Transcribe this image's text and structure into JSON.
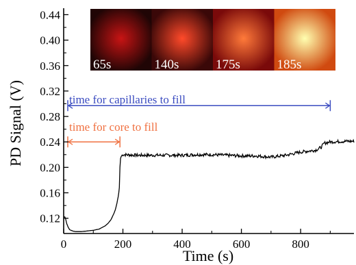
{
  "chart_data": {
    "type": "line",
    "xlabel": "Time (s)",
    "ylabel": "PD Signal (V)",
    "xlim": [
      0,
      980
    ],
    "ylim": [
      0.096,
      0.448
    ],
    "xticks": [
      0,
      200,
      400,
      600,
      800
    ],
    "xtick_labels": [
      "0",
      "200",
      "400",
      "600",
      "800"
    ],
    "yticks": [
      0.12,
      0.16,
      0.2,
      0.24,
      0.28,
      0.32,
      0.36,
      0.4,
      0.44
    ],
    "ytick_labels": [
      "0.12",
      "0.16",
      "0.20",
      "0.24",
      "0.28",
      "0.32",
      "0.36",
      "0.40",
      "0.44"
    ],
    "grid": false,
    "series": [
      {
        "color": "#000000",
        "x": [
          0,
          5,
          10,
          15,
          20,
          30,
          40,
          50,
          60,
          80,
          100,
          120,
          140,
          150,
          160,
          170,
          175,
          180,
          185,
          188,
          190,
          192,
          195,
          200,
          250,
          300,
          350,
          400,
          450,
          500,
          550,
          600,
          650,
          700,
          750,
          800,
          850,
          860,
          870,
          880,
          900,
          950,
          980
        ],
        "y": [
          0.122,
          0.122,
          0.112,
          0.106,
          0.102,
          0.1,
          0.099,
          0.099,
          0.099,
          0.1,
          0.101,
          0.103,
          0.108,
          0.112,
          0.118,
          0.128,
          0.134,
          0.144,
          0.156,
          0.168,
          0.2,
          0.214,
          0.218,
          0.22,
          0.219,
          0.219,
          0.219,
          0.219,
          0.22,
          0.22,
          0.219,
          0.218,
          0.218,
          0.216,
          0.219,
          0.224,
          0.227,
          0.229,
          0.232,
          0.238,
          0.24,
          0.241,
          0.241
        ]
      }
    ],
    "annotations": [
      {
        "text": "time for capillaries to fill",
        "color": "#3a4bc0",
        "x_start": 0,
        "x_end": 900,
        "y": 0.297,
        "text_y": 0.307
      },
      {
        "text": "time for core to fill",
        "color": "#f07040",
        "x_start": 0,
        "x_end": 190,
        "y": 0.24,
        "text_y": 0.264
      }
    ],
    "inset_images": [
      {
        "label": "65s",
        "background": "#200505",
        "spot": "#c81414"
      },
      {
        "label": "140s",
        "background": "#3a0808",
        "spot": "#ff4a2a"
      },
      {
        "label": "175s",
        "background": "#7a0a0a",
        "spot": "#ff7a3a"
      },
      {
        "label": "185s",
        "background": "#d04a10",
        "spot": "#ffffb0"
      }
    ]
  }
}
